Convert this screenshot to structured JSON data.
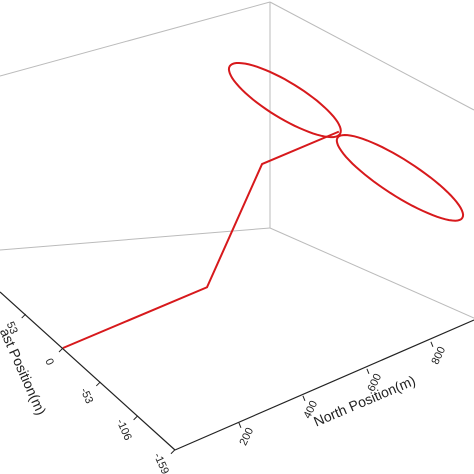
{
  "chart_data": {
    "type": "line3d",
    "xlabel": "North Position(m)",
    "ylabel": "ast Position(m)",
    "xticks": [
      200,
      400,
      600,
      800
    ],
    "yticks": [
      -159,
      -106,
      -53,
      0,
      53
    ],
    "color": "#d7191c",
    "series": [
      {
        "north": [
          0,
          450,
          622,
          862
        ],
        "east": [
          0,
          0,
          0,
          0
        ],
        "altitude": [
          0,
          0,
          100,
          100
        ]
      }
    ],
    "loops": [
      {
        "center": [
          821,
          58,
          100
        ],
        "axis1": [
          -38,
          61
        ],
        "axis2": [
          -56,
          -11.7
        ]
      },
      {
        "center": [
          884,
          -76.8,
          100
        ],
        "axis1": [
          39,
          -70.9
        ],
        "axis2": [
          -56,
          -11.7
        ]
      }
    ]
  }
}
